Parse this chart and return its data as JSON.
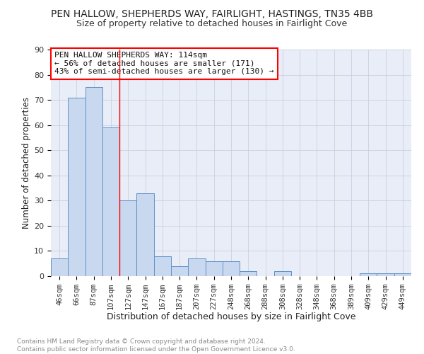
{
  "title": "PEN HALLOW, SHEPHERDS WAY, FAIRLIGHT, HASTINGS, TN35 4BB",
  "subtitle": "Size of property relative to detached houses in Fairlight Cove",
  "xlabel": "Distribution of detached houses by size in Fairlight Cove",
  "ylabel": "Number of detached properties",
  "categories": [
    "46sqm",
    "66sqm",
    "87sqm",
    "107sqm",
    "127sqm",
    "147sqm",
    "167sqm",
    "187sqm",
    "207sqm",
    "227sqm",
    "248sqm",
    "268sqm",
    "288sqm",
    "308sqm",
    "328sqm",
    "348sqm",
    "368sqm",
    "389sqm",
    "409sqm",
    "429sqm",
    "449sqm"
  ],
  "values": [
    7,
    71,
    75,
    59,
    30,
    33,
    8,
    4,
    7,
    6,
    6,
    2,
    0,
    2,
    0,
    0,
    0,
    0,
    1,
    1,
    1
  ],
  "bar_color": "#c8d8ef",
  "bar_edge_color": "#6090c8",
  "vline_x": 3.5,
  "vline_color": "red",
  "annotation_text": "PEN HALLOW SHEPHERDS WAY: 114sqm\n← 56% of detached houses are smaller (171)\n43% of semi-detached houses are larger (130) →",
  "annotation_box_color": "white",
  "annotation_box_edge_color": "red",
  "ylim": [
    0,
    90
  ],
  "yticks": [
    0,
    10,
    20,
    30,
    40,
    50,
    60,
    70,
    80,
    90
  ],
  "grid_color": "#c8d0e0",
  "background_color": "#e8edf8",
  "footer_text": "Contains HM Land Registry data © Crown copyright and database right 2024.\nContains public sector information licensed under the Open Government Licence v3.0.",
  "title_fontsize": 10,
  "subtitle_fontsize": 9,
  "xlabel_fontsize": 9,
  "ylabel_fontsize": 8.5,
  "tick_fontsize": 7.5,
  "annotation_fontsize": 8,
  "footer_fontsize": 6.5
}
